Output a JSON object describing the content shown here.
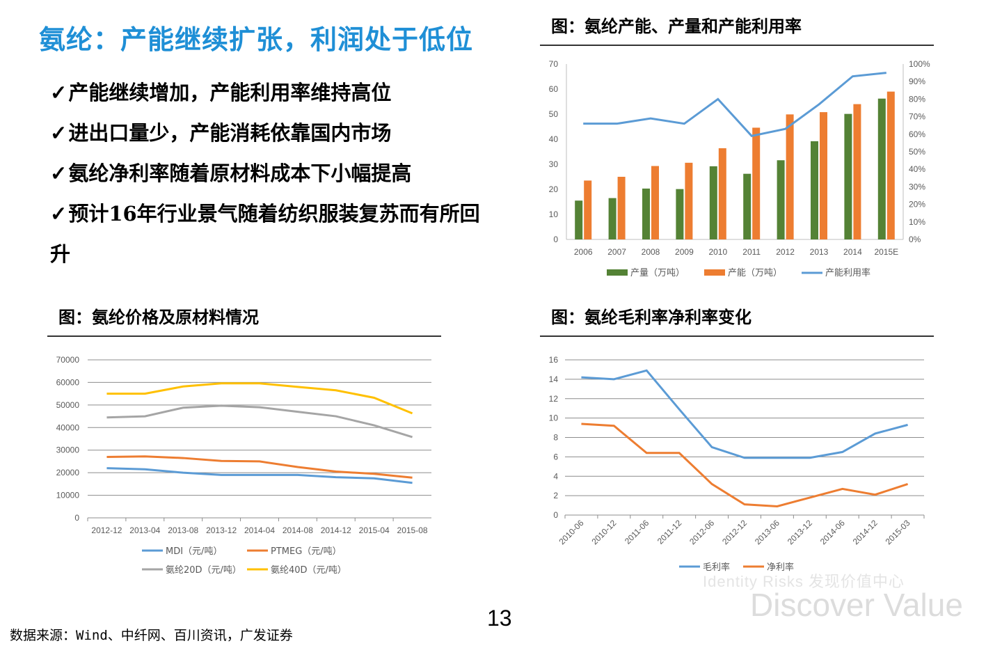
{
  "page": {
    "title": "氨纶：产能继续扩张，利润处于低位",
    "bullets": [
      "产能继续增加，产能利用率维持高位",
      "进出口量少，产能消耗依靠国内市场",
      "氨纶净利率随着原材料成本下小幅提高",
      "预计16年行业景气随着纺织服装复苏而有所回升"
    ],
    "tick_glyph": "✓",
    "page_number": "13",
    "source": "数据来源：Wind、中纤网、百川资讯，广发证券",
    "watermark_small": "Identity Risks 发现价值中心",
    "watermark": "Discover Value"
  },
  "figures": {
    "fig1_title": "图：氨纶产能、产量和产能利用率",
    "fig2_title": "图：氨纶价格及原材料情况",
    "fig3_title": "图：氨纶毛利率净利率变化"
  },
  "chart_data": [
    {
      "id": "capacity",
      "type": "bar",
      "categories": [
        "2006",
        "2007",
        "2008",
        "2009",
        "2010",
        "2011",
        "2012",
        "2013",
        "2014",
        "2015E"
      ],
      "series": [
        {
          "name": "产量（万吨）",
          "kind": "bar",
          "color": "#548235",
          "values": [
            15.5,
            16.5,
            20.3,
            20.1,
            29.2,
            26.2,
            31.6,
            39.2,
            50.1,
            56.2
          ]
        },
        {
          "name": "产能（万吨）",
          "kind": "bar",
          "color": "#ed7d31",
          "values": [
            23.5,
            25,
            29.3,
            30.6,
            36.4,
            44.6,
            49.9,
            50.8,
            54,
            59
          ]
        },
        {
          "name": "产能利用率",
          "kind": "line",
          "axis": "right",
          "color": "#5b9bd5",
          "values": [
            0.66,
            0.66,
            0.69,
            0.66,
            0.8,
            0.59,
            0.63,
            0.77,
            0.93,
            0.95
          ]
        }
      ],
      "ylim": [
        0,
        70
      ],
      "yticks": [
        0,
        10,
        20,
        30,
        40,
        50,
        60,
        70
      ],
      "y2lim": [
        0,
        1
      ],
      "y2ticks": [
        "0%",
        "10%",
        "20%",
        "30%",
        "40%",
        "50%",
        "60%",
        "70%",
        "80%",
        "90%",
        "100%"
      ],
      "grid": false,
      "legend": "bottom"
    },
    {
      "id": "prices",
      "type": "line",
      "categories": [
        "2012-12",
        "2013-04",
        "2013-08",
        "2013-12",
        "2014-04",
        "2014-08",
        "2014-12",
        "2015-04",
        "2015-08"
      ],
      "series": [
        {
          "name": "MDI（元/吨）",
          "color": "#5b9bd5",
          "x": [
            0,
            1,
            2,
            3,
            4,
            5,
            6,
            7,
            8
          ],
          "values": [
            22000,
            21500,
            20000,
            19000,
            19000,
            19000,
            18000,
            17500,
            15500
          ]
        },
        {
          "name": "PTMEG（元/吨）",
          "color": "#ed7d31",
          "x": [
            0,
            1,
            2,
            3,
            4,
            5,
            6,
            7,
            8
          ],
          "values": [
            27000,
            27200,
            26500,
            25200,
            25000,
            22500,
            20500,
            19500,
            17800
          ]
        },
        {
          "name": "氨纶20D（元/吨）",
          "color": "#a5a5a5",
          "x": [
            0,
            1,
            2,
            3,
            4,
            5,
            6,
            7,
            8
          ],
          "values": [
            44500,
            45000,
            48800,
            49700,
            49000,
            47000,
            45000,
            41000,
            35800
          ]
        },
        {
          "name": "氨纶40D（元/吨）",
          "color": "#ffc000",
          "x": [
            0,
            1,
            2,
            3,
            4,
            5,
            6,
            7,
            8
          ],
          "values": [
            55000,
            55000,
            58200,
            59600,
            59600,
            58000,
            56500,
            53200,
            46300
          ]
        }
      ],
      "ylim": [
        0,
        70000
      ],
      "yticks": [
        0,
        10000,
        20000,
        30000,
        40000,
        50000,
        60000,
        70000
      ],
      "grid": true,
      "legend": "bottom"
    },
    {
      "id": "margins",
      "type": "line",
      "categories": [
        "2010-06",
        "2010-12",
        "2011-06",
        "2011-12",
        "2012-06",
        "2012-12",
        "2013-06",
        "2013-12",
        "2014-06",
        "2014-12",
        "2015-03"
      ],
      "series": [
        {
          "name": "毛利率",
          "color": "#5b9bd5",
          "values": [
            14.2,
            14.0,
            14.9,
            10.9,
            7.0,
            5.9,
            5.9,
            5.9,
            6.5,
            8.4,
            9.3
          ]
        },
        {
          "name": "净利率",
          "color": "#ed7d31",
          "values": [
            9.4,
            9.2,
            6.4,
            6.4,
            3.2,
            1.1,
            0.9,
            1.8,
            2.7,
            2.1,
            3.2
          ]
        }
      ],
      "ylim": [
        0,
        16
      ],
      "yticks": [
        0,
        2,
        4,
        6,
        8,
        10,
        12,
        14,
        16
      ],
      "grid": true,
      "legend": "bottom"
    }
  ]
}
